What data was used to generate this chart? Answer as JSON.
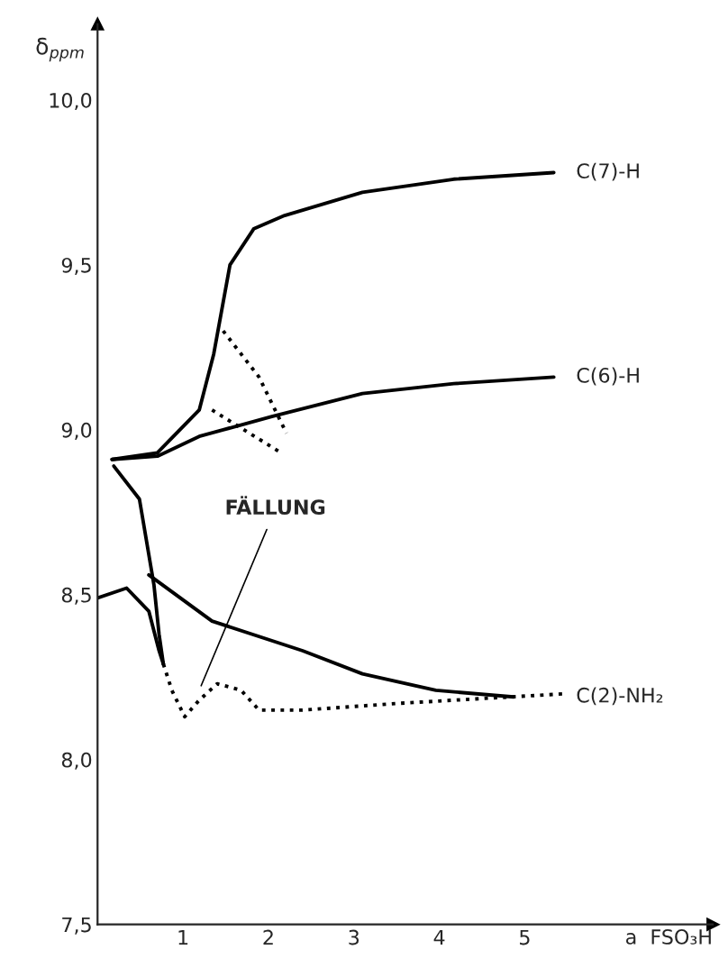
{
  "chart_data": {
    "type": "line",
    "xlabel": "a  FSO₃H",
    "ylabel": "δ$_{ppm}$",
    "xlim": [
      0,
      7.2
    ],
    "ylim": [
      7.5,
      10.23
    ],
    "xticks": [
      1,
      2,
      3,
      4,
      5
    ],
    "yticks": [
      {
        "value": 7.5,
        "label": "7,5"
      },
      {
        "value": 8.0,
        "label": "8,0"
      },
      {
        "value": 8.5,
        "label": "8,5"
      },
      {
        "value": 9.0,
        "label": "9,0"
      },
      {
        "value": 9.5,
        "label": "9,5"
      },
      {
        "value": 10.0,
        "label": "10,0"
      }
    ],
    "grid": false,
    "legend": false,
    "marker": "none",
    "series": [
      {
        "name": "C(7)-H",
        "color": "#000000",
        "line_style": "solid",
        "x": [
          0.17,
          0.7,
          1.19,
          1.36,
          1.55,
          1.83,
          2.19,
          3.1,
          4.17,
          5.34
        ],
        "values": [
          8.91,
          8.93,
          9.06,
          9.23,
          9.5,
          9.61,
          9.65,
          9.72,
          9.76,
          9.78
        ]
      },
      {
        "name": "C(6)-H",
        "color": "#000000",
        "line_style": "solid",
        "x": [
          0.17,
          0.7,
          1.19,
          1.47,
          2.04,
          3.1,
          4.17,
          5.34
        ],
        "values": [
          8.91,
          8.92,
          8.98,
          9.0,
          9.04,
          9.11,
          9.14,
          9.16
        ]
      },
      {
        "name": "C(2)-NH₂",
        "color": "#000000",
        "line_style": "solid",
        "x": [
          0.6,
          1.34,
          2.4,
          3.1,
          3.96,
          4.87
        ],
        "values": [
          8.56,
          8.42,
          8.33,
          8.26,
          8.21,
          8.19
        ]
      },
      {
        "color": "#000000",
        "line_style": "solid",
        "x": [
          0.19,
          0.49,
          0.66,
          0.72,
          0.77
        ],
        "values": [
          8.89,
          8.79,
          8.53,
          8.38,
          8.29
        ]
      },
      {
        "color": "#000000",
        "line_style": "solid",
        "x": [
          0.0,
          0.34,
          0.6,
          0.72,
          0.77
        ],
        "values": [
          8.49,
          8.52,
          8.45,
          8.33,
          8.29
        ]
      },
      {
        "color": "#000000",
        "line_style": "dotted",
        "x": [
          0.77,
          0.87,
          1.02,
          1.19,
          1.4,
          1.68,
          1.89,
          2.4,
          3.5,
          5.5
        ],
        "values": [
          8.29,
          8.21,
          8.13,
          8.18,
          8.23,
          8.21,
          8.15,
          8.15,
          8.17,
          8.2
        ]
      },
      {
        "color": "#000000",
        "line_style": "dotted",
        "x": [
          1.47,
          1.89,
          2.21
        ],
        "values": [
          9.3,
          9.16,
          8.99
        ]
      },
      {
        "color": "#000000",
        "line_style": "dotted",
        "x": [
          1.34,
          2.15
        ],
        "values": [
          9.06,
          8.93
        ]
      }
    ],
    "annotations": [
      {
        "text": "FÄLLUNG",
        "x": 1.19,
        "y": 8.21
      }
    ]
  }
}
